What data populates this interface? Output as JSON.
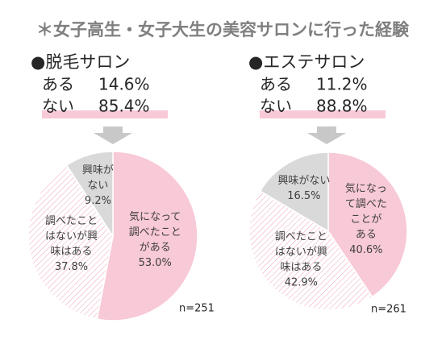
{
  "title": "＊女子高生・女子大生の美容サロンに行った経験",
  "chart_data": [
    {
      "type": "pie",
      "title": "●脱毛サロン",
      "summary_labels": [
        "ある",
        "ない"
      ],
      "summary_values": [
        14.6,
        85.4
      ],
      "summary_value_labels": [
        "14.6%",
        "85.4%"
      ],
      "categories": [
        [
          "気になって",
          "調べたこと",
          "がある"
        ],
        [
          "調べたこと",
          "はないが興",
          "味はある"
        ],
        [
          "興味が",
          "ない"
        ]
      ],
      "values": [
        53.0,
        37.8,
        9.2
      ],
      "value_labels": [
        "53.0%",
        "37.8%",
        "9.2%"
      ],
      "colors": [
        "#f8c9d6",
        "#f2a3b9",
        "#d9d9d9"
      ],
      "hatched": [
        false,
        true,
        false
      ],
      "note": "n=251"
    },
    {
      "type": "pie",
      "title": "●エステサロン",
      "summary_labels": [
        "ある",
        "ない"
      ],
      "summary_values": [
        11.2,
        88.8
      ],
      "summary_value_labels": [
        "11.2%",
        "88.8%"
      ],
      "categories": [
        [
          "気になっ",
          "て調べた",
          "ことが",
          "ある"
        ],
        [
          "調べたこと",
          "はないが興",
          "味はある"
        ],
        [
          "興味がない"
        ]
      ],
      "values": [
        40.6,
        42.9,
        16.5
      ],
      "value_labels": [
        "40.6%",
        "42.9%",
        "16.5%"
      ],
      "colors": [
        "#f8c9d6",
        "#f2a3b9",
        "#d9d9d9"
      ],
      "hatched": [
        false,
        true,
        false
      ],
      "note": "n=261"
    }
  ]
}
